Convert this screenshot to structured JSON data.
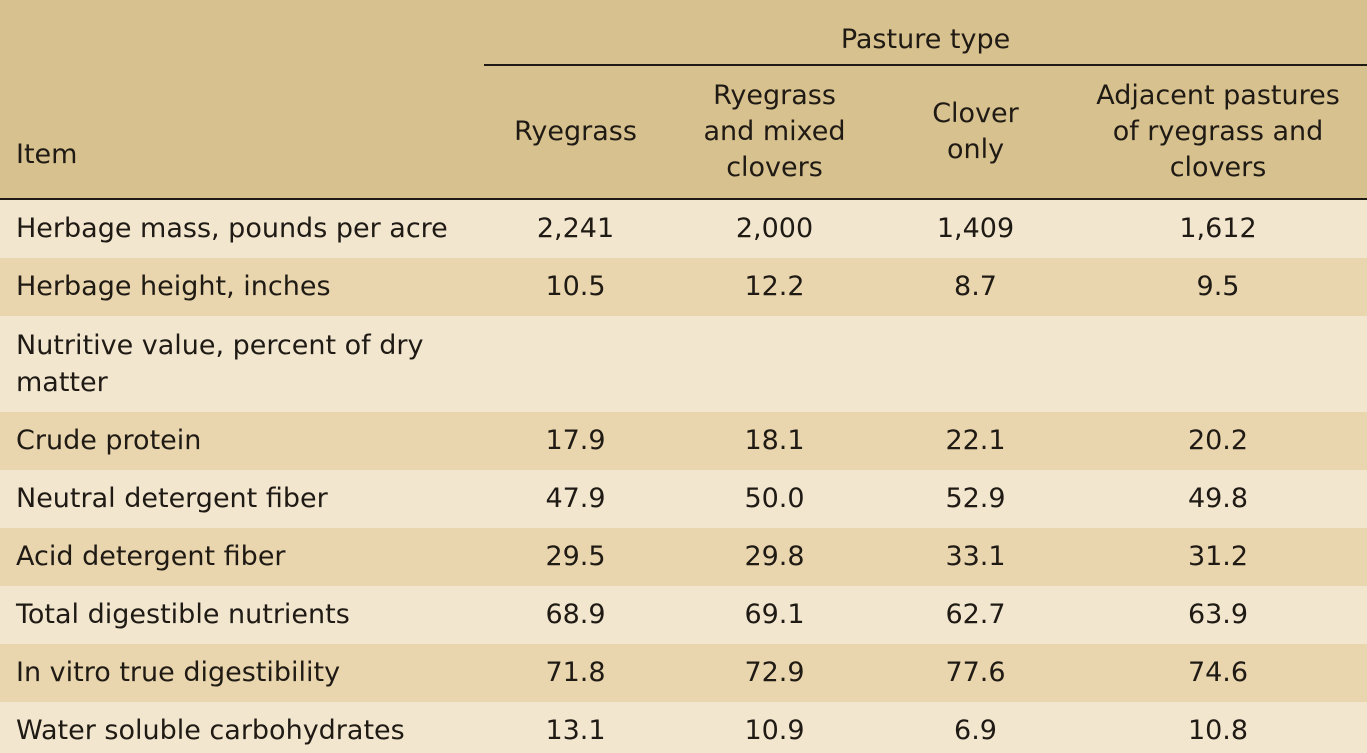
{
  "table": {
    "group_header": "Pasture type",
    "item_header": "Item",
    "columns": [
      "Ryegrass",
      "Ryegrass and mixed clovers",
      "Clover only",
      "Adjacent pastures of ryegrass and clovers"
    ],
    "rows": [
      {
        "label": "Herbage mass, pounds per acre",
        "values": [
          "2,241",
          "2,000",
          "1,409",
          "1,612"
        ]
      },
      {
        "label": "Herbage height, inches",
        "values": [
          "10.5",
          "12.2",
          "8.7",
          "9.5"
        ]
      },
      {
        "label": "Nutritive value, percent of dry matter",
        "values": [
          "",
          "",
          "",
          ""
        ]
      },
      {
        "label": "Crude protein",
        "values": [
          "17.9",
          "18.1",
          "22.1",
          "20.2"
        ]
      },
      {
        "label": "Neutral detergent fiber",
        "values": [
          "47.9",
          "50.0",
          "52.9",
          "49.8"
        ]
      },
      {
        "label": "Acid detergent fiber",
        "values": [
          "29.5",
          "29.8",
          "33.1",
          "31.2"
        ]
      },
      {
        "label": "Total digestible nutrients",
        "values": [
          "68.9",
          "69.1",
          "62.7",
          "63.9"
        ]
      },
      {
        "label": "In vitro true digestibility",
        "values": [
          "71.8",
          "72.9",
          "77.6",
          "74.6"
        ]
      },
      {
        "label": "Water soluble carbohydrates",
        "values": [
          "13.1",
          "10.9",
          "6.9",
          "10.8"
        ]
      }
    ]
  },
  "colors": {
    "header_bg": "#d7c18e",
    "row_light": "#f2e6cf",
    "row_dark": "#e9d6ae",
    "text": "#1f1a14"
  }
}
